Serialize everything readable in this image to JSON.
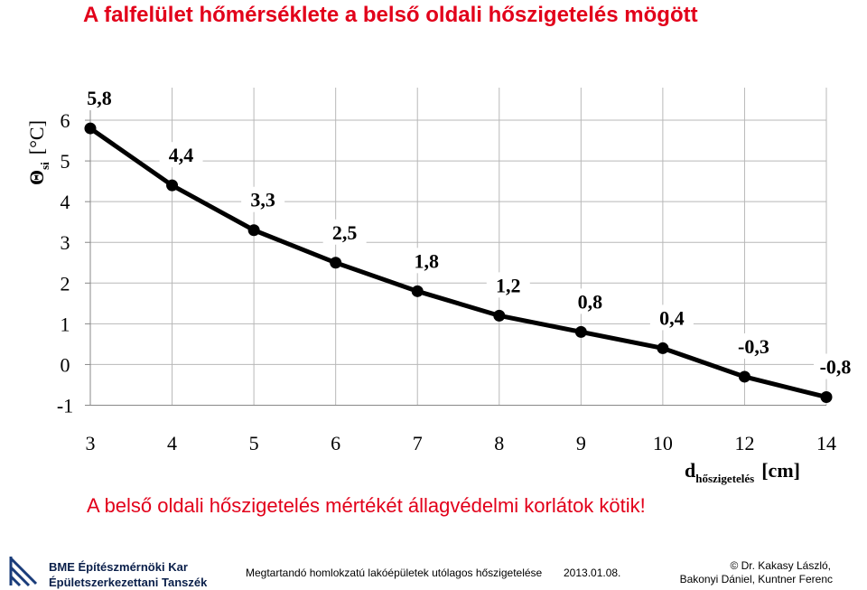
{
  "title": "A falfelület hőmérséklete a belső oldali hőszigetelés mögött",
  "chart_data": {
    "type": "line",
    "y_label": {
      "symbol": "Θ",
      "sub": "si",
      "unit": "[°C]"
    },
    "x_label": {
      "symbol": "d",
      "sub": "hőszigetelés",
      "unit": "[cm]"
    },
    "categories": [
      "3",
      "4",
      "5",
      "6",
      "7",
      "8",
      "9",
      "10",
      "12",
      "14"
    ],
    "values": [
      5.8,
      4.4,
      3.3,
      2.5,
      1.8,
      1.2,
      0.8,
      0.4,
      -0.3,
      -0.8
    ],
    "value_labels": [
      "5,8",
      "4,4",
      "3,3",
      "2,5",
      "1,8",
      "1,2",
      "0,8",
      "0,4",
      "-0,3",
      "-0,8"
    ],
    "color": "#000000",
    "ylim": [
      -1,
      6.8
    ],
    "yticks": [
      -1,
      0,
      1,
      2,
      3,
      4,
      5,
      6
    ],
    "grid": true
  },
  "note": "A belső oldali hőszigetelés mértékét állagvédelmi korlátok kötik!",
  "footer": {
    "faculty": "BME Építészmérnöki Kar",
    "department": "Épületszerkezettani Tanszék",
    "course": "Megtartandó homlokzatú lakóépületek utólagos hőszigetelése",
    "date": "2013.01.08.",
    "authors_1": "© Dr. Kakasy László,",
    "authors_2": "Bakonyi Dániel, Kuntner Ferenc"
  }
}
